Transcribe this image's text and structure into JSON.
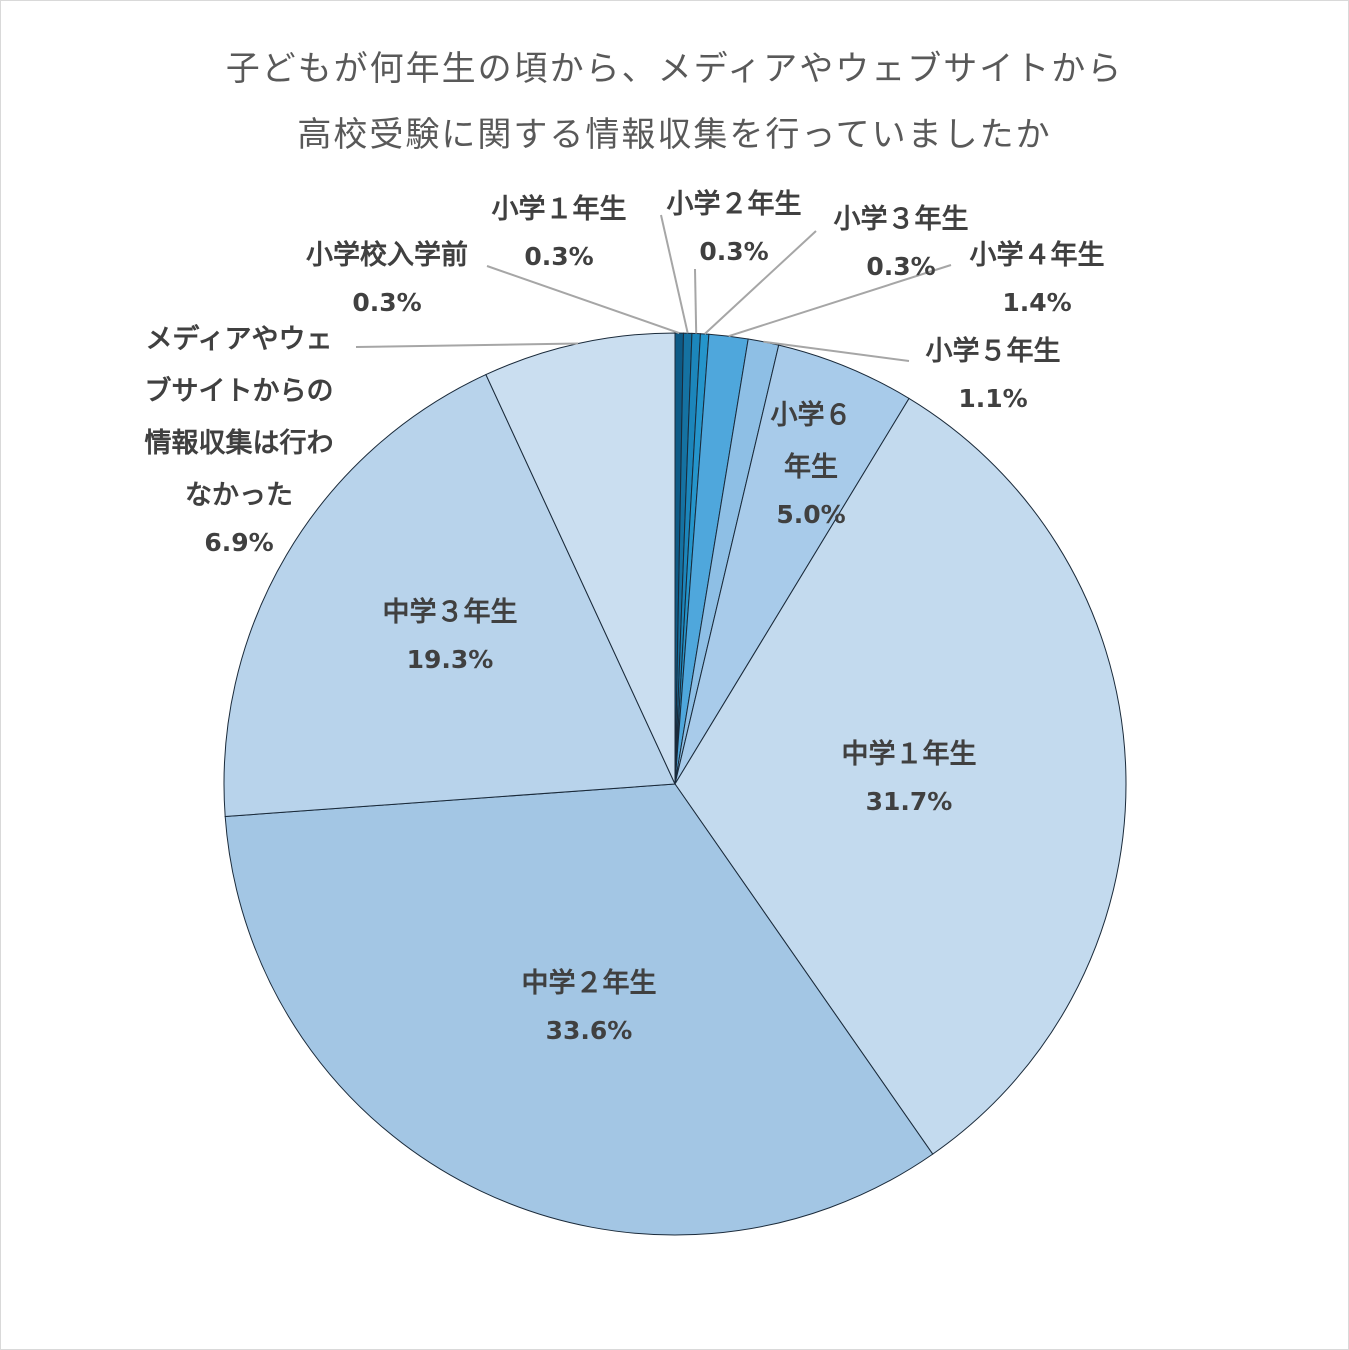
{
  "chart_data": {
    "type": "pie",
    "title_lines": [
      "子どもが何年生の頃から、メディアやウェブサイトから",
      "高校受験に関する情報収集を行っていましたか"
    ],
    "start": "top",
    "direction": "clockwise",
    "slices": [
      {
        "label": "小学校入学前",
        "value": 0.3,
        "display": "0.3%",
        "color": "#0d5a86"
      },
      {
        "label": "小学１年生",
        "value": 0.3,
        "display": "0.3%",
        "color": "#1572a2"
      },
      {
        "label": "小学２年生",
        "value": 0.3,
        "display": "0.3%",
        "color": "#1c86bb"
      },
      {
        "label": "小学３年生",
        "value": 0.3,
        "display": "0.3%",
        "color": "#2595cb"
      },
      {
        "label": "小学４年生",
        "value": 1.4,
        "display": "1.4%",
        "color": "#4fa7dc"
      },
      {
        "label": "小学５年生",
        "value": 1.1,
        "display": "1.1%",
        "color": "#8ebfe5"
      },
      {
        "label": "小学６年生",
        "value": 5.0,
        "display": "5.0%",
        "color": "#a8cbea"
      },
      {
        "label": "中学１年生",
        "value": 31.7,
        "display": "31.7%",
        "color": "#c3daee"
      },
      {
        "label": "中学２年生",
        "value": 33.6,
        "display": "33.6%",
        "color": "#a3c6e4"
      },
      {
        "label": "中学３年生",
        "value": 19.3,
        "display": "19.3%",
        "color": "#b8d3eb"
      },
      {
        "label": "メディアやウェブサイトからの情報収集は行わなかった",
        "value": 6.9,
        "display": "6.9%",
        "color": "#cadef0"
      }
    ]
  }
}
